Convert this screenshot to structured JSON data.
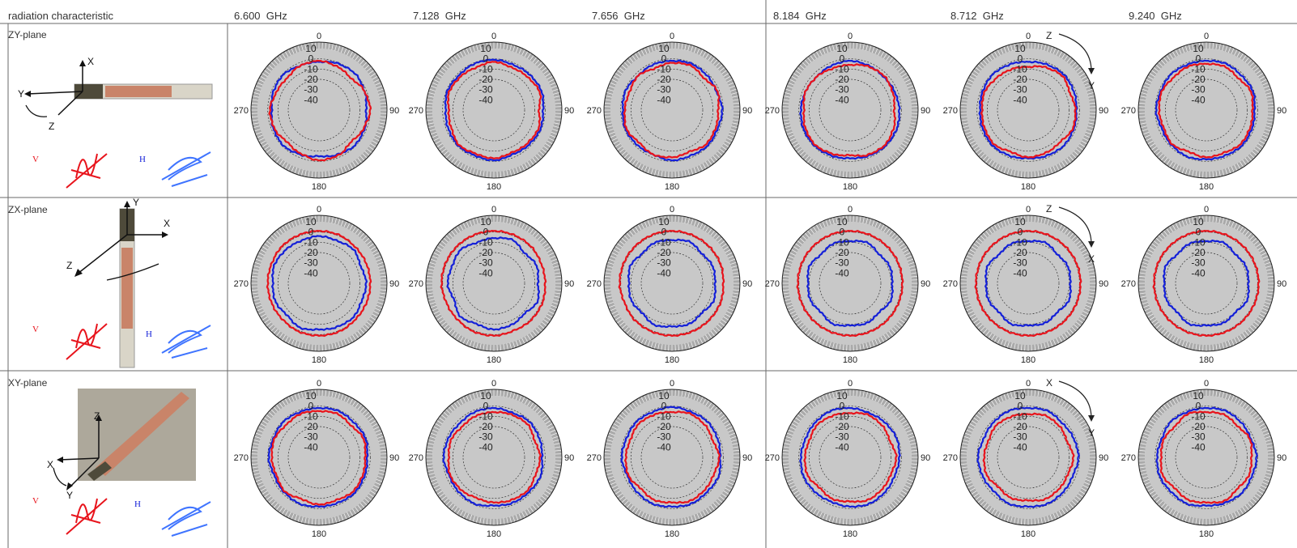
{
  "table": {
    "corner_label": "radiation characteristic",
    "frequency_unit": "GHz",
    "frequencies": [
      "6.600",
      "7.128",
      "7.656",
      "8.184",
      "8.712",
      "9.240"
    ],
    "planes": [
      {
        "label": "ZY-plane",
        "axes": [
          "X",
          "Y",
          "Z"
        ],
        "marker": {
          "col": 4,
          "letters": [
            "Z",
            "Y"
          ]
        }
      },
      {
        "label": "ZX-plane",
        "axes": [
          "Y",
          "X",
          "Z"
        ],
        "marker": {
          "col": 4,
          "letters": [
            "Z",
            "X"
          ]
        }
      },
      {
        "label": "XY-plane",
        "axes": [
          "Z",
          "X",
          "Y"
        ],
        "marker": {
          "col": 4,
          "letters": [
            "X",
            "Y"
          ]
        }
      }
    ],
    "polarization_labels": {
      "vertical": "V",
      "horizontal": "H"
    }
  },
  "chart_data": {
    "type": "polar",
    "angle_labels": [
      "0",
      "90",
      "180",
      "270"
    ],
    "radial_ticks": [
      "10",
      "0",
      "-10",
      "-20",
      "-30",
      "-40"
    ],
    "rlim": [
      -50,
      10
    ],
    "series_colors": {
      "V": "#e8141c",
      "H": "#1420d8"
    },
    "plots": [
      {
        "plane": "ZY-plane",
        "freq": "6.600",
        "V": [
          -2,
          -4,
          -6,
          -2,
          0,
          -3,
          -6,
          -2,
          -1,
          -4,
          -6,
          -3,
          -2,
          -5,
          -6,
          -3
        ],
        "H": [
          -3,
          -1,
          0,
          -2,
          -4,
          -2,
          -1,
          -3,
          -5,
          -3,
          -1,
          -2,
          -4,
          -2,
          -1,
          -3
        ]
      },
      {
        "plane": "ZY-plane",
        "freq": "7.128",
        "V": [
          -3,
          -5,
          -4,
          -2,
          -6,
          -3,
          -4,
          -5,
          -3,
          -4,
          -2,
          -5,
          -6,
          -3,
          -4,
          -5
        ],
        "H": [
          -1,
          -2,
          -1,
          0,
          -2,
          -1,
          -2,
          -3,
          -1,
          -2,
          -1,
          -2,
          -3,
          -1,
          -2,
          -1
        ]
      },
      {
        "plane": "ZY-plane",
        "freq": "7.656",
        "V": [
          -4,
          -3,
          -6,
          -2,
          -5,
          -4,
          -3,
          -6,
          -4,
          -3,
          -5,
          -2,
          -4,
          -5,
          -3,
          -6
        ],
        "H": [
          -2,
          -1,
          -2,
          -3,
          -1,
          -2,
          -1,
          -2,
          -1,
          -3,
          -2,
          -1,
          -2,
          -1,
          -3,
          -2
        ]
      },
      {
        "plane": "ZY-plane",
        "freq": "8.184",
        "V": [
          -6,
          -4,
          -3,
          -5,
          -7,
          -4,
          -2,
          -3,
          -6,
          -4,
          -2,
          -3,
          -5,
          -3,
          -4,
          -6
        ],
        "H": [
          -2,
          -3,
          -4,
          -3,
          -2,
          -1,
          -1,
          -2,
          -3,
          -2,
          -1,
          -1,
          -2,
          -3,
          -4,
          -3
        ]
      },
      {
        "plane": "ZY-plane",
        "freq": "8.712",
        "V": [
          -8,
          -5,
          -3,
          -6,
          -4,
          -3,
          -6,
          -5,
          -4,
          -6,
          -3,
          -4,
          -5,
          -4,
          -6,
          -7
        ],
        "H": [
          -3,
          -2,
          -1,
          -2,
          -3,
          -2,
          -1,
          -2,
          -3,
          -2,
          -1,
          -2,
          -3,
          -2,
          -1,
          -2
        ]
      },
      {
        "plane": "ZY-plane",
        "freq": "9.240",
        "V": [
          -5,
          -4,
          -6,
          -3,
          -5,
          -4,
          -3,
          -5,
          -4,
          -6,
          -3,
          -5,
          -4,
          -3,
          -5,
          -4
        ],
        "H": [
          -2,
          -1,
          -2,
          -1,
          -3,
          -2,
          -1,
          -2,
          -2,
          -1,
          -2,
          -3,
          -1,
          -2,
          -1,
          -2
        ]
      },
      {
        "plane": "ZX-plane",
        "freq": "6.600",
        "V": [
          1,
          1,
          0,
          0,
          0,
          0,
          0,
          1,
          1,
          1,
          0,
          0,
          0,
          0,
          1,
          1
        ],
        "H": [
          -4,
          -5,
          -3,
          -6,
          -4,
          -5,
          -3,
          -4,
          -5,
          -3,
          -6,
          -4,
          -5,
          -3,
          -4,
          -5
        ]
      },
      {
        "plane": "ZX-plane",
        "freq": "7.128",
        "V": [
          1,
          1,
          1,
          0,
          0,
          1,
          1,
          0,
          1,
          1,
          0,
          0,
          1,
          1,
          1,
          1
        ],
        "H": [
          -6,
          -4,
          -8,
          -5,
          -7,
          -4,
          -8,
          -6,
          -5,
          -7,
          -4,
          -8,
          -5,
          -6,
          -4,
          -7
        ]
      },
      {
        "plane": "ZX-plane",
        "freq": "7.656",
        "V": [
          1,
          1,
          1,
          1,
          0,
          1,
          1,
          1,
          1,
          1,
          1,
          0,
          1,
          1,
          1,
          1
        ],
        "H": [
          -8,
          -6,
          -9,
          -7,
          -8,
          -6,
          -9,
          -7,
          -8,
          -6,
          -9,
          -7,
          -8,
          -6,
          -9,
          -7
        ]
      },
      {
        "plane": "ZX-plane",
        "freq": "8.184",
        "V": [
          1,
          1,
          1,
          1,
          1,
          1,
          1,
          1,
          1,
          1,
          1,
          1,
          1,
          1,
          1,
          1
        ],
        "H": [
          -9,
          -7,
          -10,
          -8,
          -9,
          -7,
          -10,
          -8,
          -9,
          -7,
          -10,
          -8,
          -9,
          -7,
          -10,
          -8
        ]
      },
      {
        "plane": "ZX-plane",
        "freq": "8.712",
        "V": [
          1,
          1,
          1,
          1,
          1,
          1,
          1,
          1,
          1,
          1,
          1,
          1,
          1,
          1,
          1,
          1
        ],
        "H": [
          -9,
          -7,
          -10,
          -8,
          -9,
          -7,
          -10,
          -8,
          -9,
          -7,
          -10,
          -8,
          -9,
          -7,
          -10,
          -8
        ]
      },
      {
        "plane": "ZX-plane",
        "freq": "9.240",
        "V": [
          1,
          1,
          1,
          1,
          1,
          1,
          1,
          1,
          1,
          1,
          1,
          1,
          1,
          1,
          1,
          1
        ],
        "H": [
          -9,
          -7,
          -10,
          -8,
          -9,
          -7,
          -10,
          -8,
          -9,
          -7,
          -10,
          -8,
          -9,
          -7,
          -10,
          -8
        ]
      },
      {
        "plane": "XY-plane",
        "freq": "6.600",
        "V": [
          -5,
          -4,
          -6,
          -3,
          -5,
          -4,
          -3,
          -5,
          -4,
          -6,
          -3,
          -5,
          -4,
          -3,
          -5,
          -4
        ],
        "H": [
          -2,
          -1,
          -2,
          -1,
          -3,
          -2,
          -1,
          -2,
          -2,
          -1,
          -2,
          -3,
          -1,
          -2,
          -1,
          -2
        ]
      },
      {
        "plane": "XY-plane",
        "freq": "7.128",
        "V": [
          -6,
          -5,
          -4,
          -7,
          -5,
          -6,
          -4,
          -5,
          -6,
          -7,
          -5,
          -4,
          -6,
          -5,
          -7,
          -6
        ],
        "H": [
          -2,
          -3,
          -1,
          -2,
          -3,
          -1,
          -2,
          -2,
          -3,
          -1,
          -2,
          -3,
          -1,
          -2,
          -3,
          -2
        ]
      },
      {
        "plane": "XY-plane",
        "freq": "7.656",
        "V": [
          -6,
          -4,
          -5,
          -7,
          -4,
          -6,
          -5,
          -4,
          -6,
          -5,
          -7,
          -4,
          -5,
          -6,
          -4,
          -5
        ],
        "H": [
          -1,
          -2,
          -1,
          -2,
          -3,
          -1,
          -2,
          -1,
          -2,
          -1,
          -2,
          -3,
          -1,
          -2,
          -1,
          -2
        ]
      },
      {
        "plane": "XY-plane",
        "freq": "8.184",
        "V": [
          -7,
          -5,
          -6,
          -8,
          -5,
          -7,
          -6,
          -5,
          -7,
          -6,
          -8,
          -5,
          -6,
          -7,
          -5,
          -6
        ],
        "H": [
          -2,
          -3,
          -2,
          -1,
          -2,
          -3,
          -2,
          -1,
          -2,
          -3,
          -2,
          -1,
          -2,
          -3,
          -2,
          -1
        ]
      },
      {
        "plane": "XY-plane",
        "freq": "8.712",
        "V": [
          -8,
          -6,
          -7,
          -9,
          -6,
          -8,
          -7,
          -6,
          -8,
          -7,
          -9,
          -6,
          -7,
          -8,
          -6,
          -7
        ],
        "H": [
          -2,
          -1,
          -3,
          -2,
          -1,
          -3,
          -2,
          -1,
          -2,
          -1,
          -3,
          -2,
          -1,
          -3,
          -2,
          -1
        ]
      },
      {
        "plane": "XY-plane",
        "freq": "9.240",
        "V": [
          -6,
          -5,
          -7,
          -4,
          -6,
          -5,
          -7,
          -4,
          -6,
          -5,
          -7,
          -4,
          -6,
          -5,
          -7,
          -4
        ],
        "H": [
          -2,
          -1,
          -2,
          -3,
          -1,
          -2,
          -1,
          -2,
          -3,
          -1,
          -2,
          -1,
          -2,
          -3,
          -1,
          -2
        ]
      }
    ]
  }
}
